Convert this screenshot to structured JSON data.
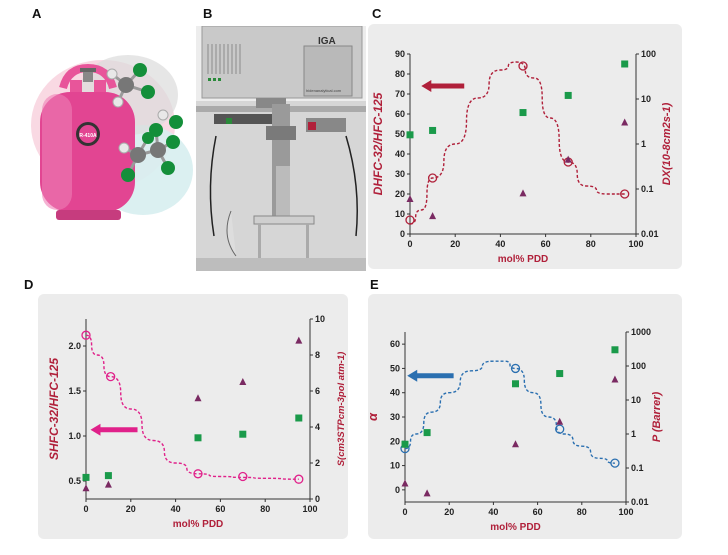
{
  "panels": {
    "A": {
      "letter": "A",
      "cylinder_text": "R-410A"
    },
    "B": {
      "letter": "B",
      "instrument_label": "IGA",
      "site_text": "hidenanalytical.com"
    },
    "C": {
      "letter": "C"
    },
    "D": {
      "letter": "D"
    },
    "E": {
      "letter": "E"
    }
  },
  "colors": {
    "dark_red": "#b0203a",
    "green": "#1a9a4a",
    "purple": "#7a2a62",
    "magenta": "#e0218a",
    "blue": "#2a6fb0"
  },
  "chart_data": [
    {
      "id": "C",
      "type": "scatter",
      "xlabel": "mol% PDD",
      "xlim": [
        0,
        100
      ],
      "xticks": [
        "0",
        "20",
        "40",
        "60",
        "80",
        "100"
      ],
      "ylabel_left": "DHFC-32/HFC-125",
      "ylim_left": [
        0,
        90
      ],
      "yticks_left": [
        "0",
        "10",
        "20",
        "30",
        "40",
        "50",
        "60",
        "70",
        "80",
        "90"
      ],
      "ylabel_right": "DX(10-8cm2s-1)",
      "ylim_right_log": [
        0.01,
        100
      ],
      "yticks_right": [
        "0.01",
        "0.1",
        "1",
        "10",
        "100"
      ],
      "arrow_direction": "left",
      "series": [
        {
          "name": "ratio",
          "axis": "left",
          "marker": "open-circle",
          "x": [
            0,
            10,
            50,
            70,
            95
          ],
          "y": [
            7,
            28,
            84,
            36,
            20
          ]
        },
        {
          "name": "HFC-32",
          "axis": "right",
          "marker": "square",
          "x": [
            0,
            10,
            50,
            70,
            95
          ],
          "y": [
            1.6,
            2.0,
            5.0,
            12,
            60
          ]
        },
        {
          "name": "HFC-125",
          "axis": "right",
          "marker": "triangle",
          "x": [
            0,
            10,
            50,
            70,
            95
          ],
          "y": [
            0.06,
            0.025,
            0.08,
            0.45,
            3
          ]
        }
      ]
    },
    {
      "id": "D",
      "type": "scatter",
      "xlabel": "mol% PDD",
      "xlim": [
        0,
        100
      ],
      "xticks": [
        "0",
        "20",
        "40",
        "60",
        "80",
        "100"
      ],
      "ylabel_left": "SHFC-32/HFC-125",
      "ylim_left": [
        0.3,
        2.3
      ],
      "yticks_left": [
        "0.5",
        "1.0",
        "1.5",
        "2.0"
      ],
      "ylabel_right": "S(cm3STPcm-3pol atm-1)",
      "ylim_right": [
        0,
        10
      ],
      "yticks_right": [
        "0",
        "2",
        "4",
        "6",
        "8",
        "10"
      ],
      "arrow_direction": "left",
      "series": [
        {
          "name": "ratio",
          "axis": "left",
          "marker": "open-circle",
          "x": [
            0,
            11,
            50,
            70,
            95
          ],
          "y": [
            2.12,
            1.66,
            0.58,
            0.55,
            0.52
          ]
        },
        {
          "name": "HFC-32",
          "axis": "right",
          "marker": "square",
          "x": [
            0,
            10,
            50,
            70,
            95
          ],
          "y": [
            1.2,
            1.3,
            3.4,
            3.6,
            4.5
          ]
        },
        {
          "name": "HFC-125",
          "axis": "right",
          "marker": "triangle",
          "x": [
            0,
            10,
            50,
            70,
            95
          ],
          "y": [
            0.6,
            0.8,
            5.6,
            6.5,
            8.8
          ]
        }
      ]
    },
    {
      "id": "E",
      "type": "scatter",
      "xlabel": "mol% PDD",
      "xlim": [
        0,
        100
      ],
      "xticks": [
        "0",
        "20",
        "40",
        "60",
        "80",
        "100"
      ],
      "ylabel_left": "α",
      "ylim_left": [
        -5,
        65
      ],
      "yticks_left": [
        "0",
        "10",
        "20",
        "30",
        "40",
        "50",
        "60"
      ],
      "ylabel_right": "P (Barrer)",
      "ylim_right_log": [
        0.01,
        1000
      ],
      "yticks_right": [
        "0.01",
        "0.1",
        "1",
        "10",
        "100",
        "1000"
      ],
      "arrow_direction": "left",
      "series": [
        {
          "name": "ratio",
          "axis": "left",
          "marker": "open-circle",
          "x": [
            0,
            50,
            70,
            95
          ],
          "y": [
            17,
            50,
            25,
            11
          ]
        },
        {
          "name": "HFC-32",
          "axis": "right",
          "marker": "square",
          "x": [
            0,
            10,
            50,
            70,
            95
          ],
          "y": [
            0.5,
            1.1,
            30,
            60,
            300
          ]
        },
        {
          "name": "HFC-125",
          "axis": "right",
          "marker": "triangle",
          "x": [
            0,
            10,
            50,
            70,
            95
          ],
          "y": [
            0.035,
            0.018,
            0.5,
            2.3,
            40
          ]
        }
      ]
    }
  ]
}
